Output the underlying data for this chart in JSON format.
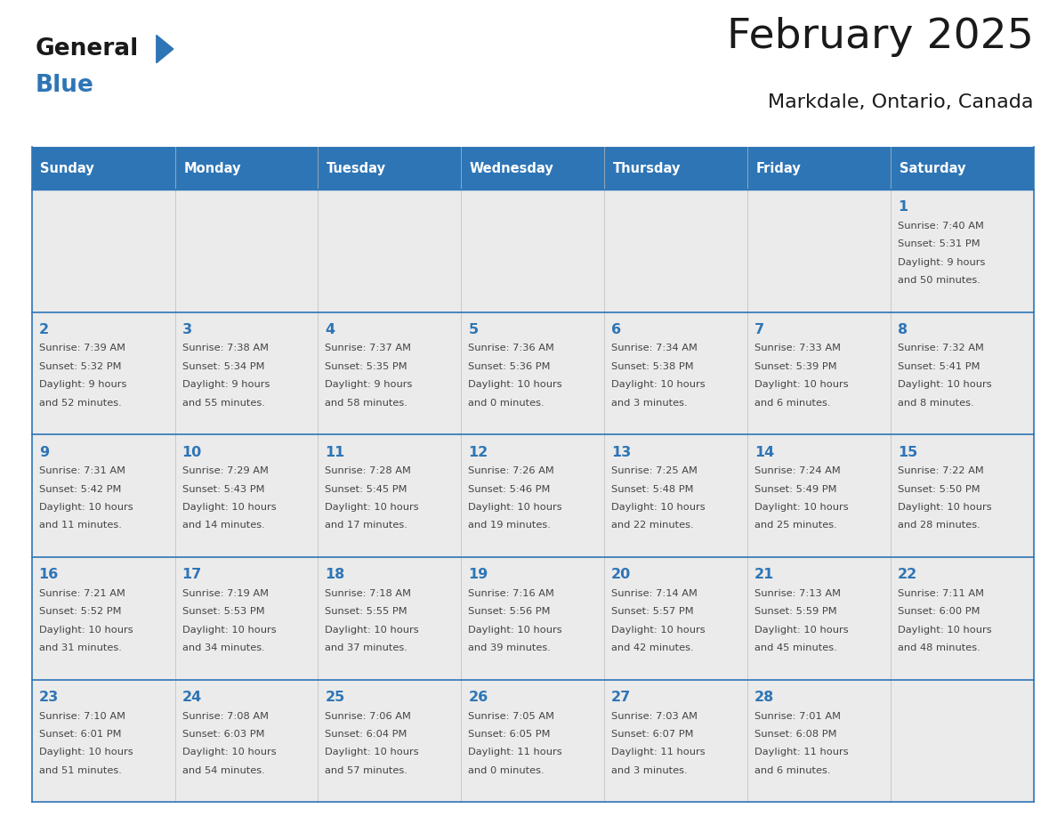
{
  "title": "February 2025",
  "subtitle": "Markdale, Ontario, Canada",
  "header_color": "#2E75B6",
  "header_text_color": "#FFFFFF",
  "cell_bg_color": "#EBEBEB",
  "border_color": "#2E75B6",
  "days_of_week": [
    "Sunday",
    "Monday",
    "Tuesday",
    "Wednesday",
    "Thursday",
    "Friday",
    "Saturday"
  ],
  "title_color": "#1a1a1a",
  "subtitle_color": "#1a1a1a",
  "day_number_color": "#2E75B6",
  "text_color": "#444444",
  "logo_general_color": "#1a1a1a",
  "logo_blue_color": "#2E75B6",
  "logo_triangle_color": "#2E75B6",
  "calendar": [
    [
      null,
      null,
      null,
      null,
      null,
      null,
      {
        "day": 1,
        "sunrise": "7:40 AM",
        "sunset": "5:31 PM",
        "daylight": "9 hours\nand 50 minutes."
      }
    ],
    [
      {
        "day": 2,
        "sunrise": "7:39 AM",
        "sunset": "5:32 PM",
        "daylight": "9 hours\nand 52 minutes."
      },
      {
        "day": 3,
        "sunrise": "7:38 AM",
        "sunset": "5:34 PM",
        "daylight": "9 hours\nand 55 minutes."
      },
      {
        "day": 4,
        "sunrise": "7:37 AM",
        "sunset": "5:35 PM",
        "daylight": "9 hours\nand 58 minutes."
      },
      {
        "day": 5,
        "sunrise": "7:36 AM",
        "sunset": "5:36 PM",
        "daylight": "10 hours\nand 0 minutes."
      },
      {
        "day": 6,
        "sunrise": "7:34 AM",
        "sunset": "5:38 PM",
        "daylight": "10 hours\nand 3 minutes."
      },
      {
        "day": 7,
        "sunrise": "7:33 AM",
        "sunset": "5:39 PM",
        "daylight": "10 hours\nand 6 minutes."
      },
      {
        "day": 8,
        "sunrise": "7:32 AM",
        "sunset": "5:41 PM",
        "daylight": "10 hours\nand 8 minutes."
      }
    ],
    [
      {
        "day": 9,
        "sunrise": "7:31 AM",
        "sunset": "5:42 PM",
        "daylight": "10 hours\nand 11 minutes."
      },
      {
        "day": 10,
        "sunrise": "7:29 AM",
        "sunset": "5:43 PM",
        "daylight": "10 hours\nand 14 minutes."
      },
      {
        "day": 11,
        "sunrise": "7:28 AM",
        "sunset": "5:45 PM",
        "daylight": "10 hours\nand 17 minutes."
      },
      {
        "day": 12,
        "sunrise": "7:26 AM",
        "sunset": "5:46 PM",
        "daylight": "10 hours\nand 19 minutes."
      },
      {
        "day": 13,
        "sunrise": "7:25 AM",
        "sunset": "5:48 PM",
        "daylight": "10 hours\nand 22 minutes."
      },
      {
        "day": 14,
        "sunrise": "7:24 AM",
        "sunset": "5:49 PM",
        "daylight": "10 hours\nand 25 minutes."
      },
      {
        "day": 15,
        "sunrise": "7:22 AM",
        "sunset": "5:50 PM",
        "daylight": "10 hours\nand 28 minutes."
      }
    ],
    [
      {
        "day": 16,
        "sunrise": "7:21 AM",
        "sunset": "5:52 PM",
        "daylight": "10 hours\nand 31 minutes."
      },
      {
        "day": 17,
        "sunrise": "7:19 AM",
        "sunset": "5:53 PM",
        "daylight": "10 hours\nand 34 minutes."
      },
      {
        "day": 18,
        "sunrise": "7:18 AM",
        "sunset": "5:55 PM",
        "daylight": "10 hours\nand 37 minutes."
      },
      {
        "day": 19,
        "sunrise": "7:16 AM",
        "sunset": "5:56 PM",
        "daylight": "10 hours\nand 39 minutes."
      },
      {
        "day": 20,
        "sunrise": "7:14 AM",
        "sunset": "5:57 PM",
        "daylight": "10 hours\nand 42 minutes."
      },
      {
        "day": 21,
        "sunrise": "7:13 AM",
        "sunset": "5:59 PM",
        "daylight": "10 hours\nand 45 minutes."
      },
      {
        "day": 22,
        "sunrise": "7:11 AM",
        "sunset": "6:00 PM",
        "daylight": "10 hours\nand 48 minutes."
      }
    ],
    [
      {
        "day": 23,
        "sunrise": "7:10 AM",
        "sunset": "6:01 PM",
        "daylight": "10 hours\nand 51 minutes."
      },
      {
        "day": 24,
        "sunrise": "7:08 AM",
        "sunset": "6:03 PM",
        "daylight": "10 hours\nand 54 minutes."
      },
      {
        "day": 25,
        "sunrise": "7:06 AM",
        "sunset": "6:04 PM",
        "daylight": "10 hours\nand 57 minutes."
      },
      {
        "day": 26,
        "sunrise": "7:05 AM",
        "sunset": "6:05 PM",
        "daylight": "11 hours\nand 0 minutes."
      },
      {
        "day": 27,
        "sunrise": "7:03 AM",
        "sunset": "6:07 PM",
        "daylight": "11 hours\nand 3 minutes."
      },
      {
        "day": 28,
        "sunrise": "7:01 AM",
        "sunset": "6:08 PM",
        "daylight": "11 hours\nand 6 minutes."
      },
      null
    ]
  ]
}
